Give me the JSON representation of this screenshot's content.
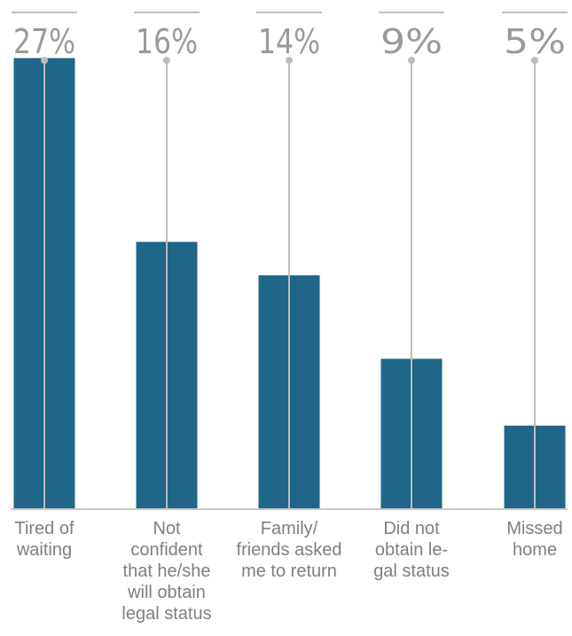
{
  "chart_data": {
    "type": "bar",
    "categories": [
      [
        "Tired of",
        "waiting"
      ],
      [
        "Not",
        "confident",
        "that he/she",
        "will obtain",
        "legal status"
      ],
      [
        "Family/",
        "friends asked",
        "me to return"
      ],
      [
        "Did not",
        "obtain le-",
        "gal status"
      ],
      [
        "Missed",
        "home"
      ]
    ],
    "values": [
      27,
      16,
      14,
      9,
      5
    ],
    "value_labels": [
      "27%",
      "16%",
      "14%",
      "9%",
      "5%"
    ],
    "ylim": [
      0,
      30
    ],
    "grid": false,
    "colors": {
      "bar": "#1f6689",
      "leader_line": "#bdbdbd",
      "value_label": "#9a9a9a",
      "category_label": "#7f7f7f",
      "axis": "#c8c8c8"
    }
  }
}
